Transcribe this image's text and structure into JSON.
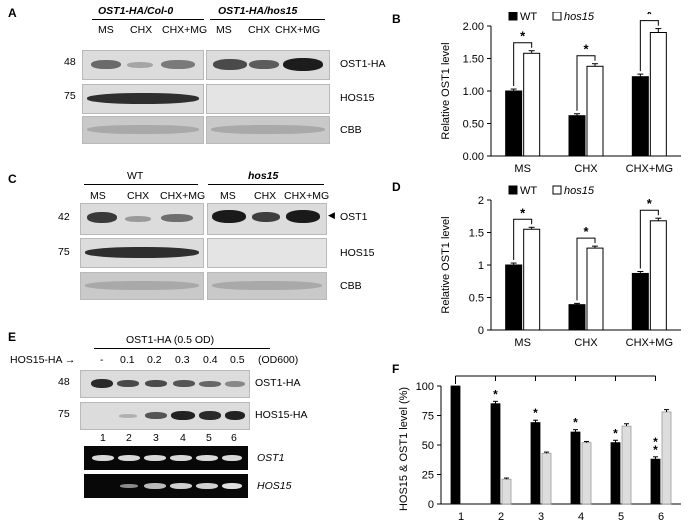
{
  "panels": {
    "A": {
      "letter": "A",
      "group1": "OST1-HA/Col-0",
      "group2": "OST1-HA/hos15",
      "lanes": [
        "MS",
        "CHX",
        "CHX+MG",
        "MS",
        "CHX",
        "CHX+MG"
      ],
      "marker_48": "48",
      "marker_75": "75",
      "row1": "OST1-HA",
      "row2": "HOS15",
      "row3": "CBB"
    },
    "C": {
      "letter": "C",
      "group1": "WT",
      "group2": "hos15",
      "lanes": [
        "MS",
        "CHX",
        "CHX+MG",
        "MS",
        "CHX",
        "CHX+MG"
      ],
      "marker_42": "42",
      "marker_75": "75",
      "row1": "OST1",
      "row2": "HOS15",
      "row3": "CBB"
    },
    "E": {
      "letter": "E",
      "title": "OST1-HA (0.5 OD)",
      "hos15_label": "HOS15-HA",
      "doses": [
        "-",
        "0.1",
        "0.2",
        "0.3",
        "0.4",
        "0.5"
      ],
      "od_label": "(OD600)",
      "marker_48": "48",
      "marker_75": "75",
      "row1": "OST1-HA",
      "row2": "HOS15-HA",
      "row3": "OST1",
      "row4": "HOS15",
      "lane_numbers": [
        "1",
        "2",
        "3",
        "4",
        "5",
        "6"
      ]
    }
  },
  "chart_data": [
    {
      "id": "B",
      "type": "bar",
      "letter": "B",
      "categories": [
        "MS",
        "CHX",
        "CHX+MG"
      ],
      "series": [
        {
          "name": "WT",
          "values": [
            1.0,
            0.62,
            1.22
          ],
          "color": "#000000"
        },
        {
          "name": "hos15",
          "values": [
            1.58,
            1.38,
            1.9
          ],
          "color": "#ffffff"
        }
      ],
      "errors": [
        [
          0.03,
          0.03,
          0.04
        ],
        [
          0.04,
          0.04,
          0.06
        ]
      ],
      "ylabel": "Relative OST1 level",
      "ylim": [
        0,
        2.0
      ],
      "yticks": [
        "0.00",
        "0.50",
        "1.00",
        "1.50",
        "2.00"
      ],
      "significance": [
        "*",
        "*",
        "*"
      ],
      "legend": "top"
    },
    {
      "id": "D",
      "type": "bar",
      "letter": "D",
      "categories": [
        "MS",
        "CHX",
        "CHX+MG"
      ],
      "series": [
        {
          "name": "WT",
          "values": [
            1.0,
            0.39,
            0.87
          ],
          "color": "#000000"
        },
        {
          "name": "hos15",
          "values": [
            1.55,
            1.26,
            1.68
          ],
          "color": "#ffffff"
        }
      ],
      "errors": [
        [
          0.03,
          0.02,
          0.03
        ],
        [
          0.03,
          0.03,
          0.04
        ]
      ],
      "ylabel": "Relative OST1 level",
      "ylim": [
        0,
        2.0
      ],
      "yticks": [
        "0",
        "0.5",
        "1",
        "1.5",
        "2"
      ],
      "significance": [
        "*",
        "*",
        "*"
      ],
      "legend": "top"
    },
    {
      "id": "F",
      "type": "bar",
      "letter": "F",
      "categories": [
        "1",
        "2",
        "3",
        "4",
        "5",
        "6"
      ],
      "series": [
        {
          "name": "OST1",
          "values": [
            100,
            85,
            69,
            61,
            52,
            38
          ],
          "color": "#000000"
        },
        {
          "name": "HOS15",
          "values": [
            0,
            21,
            43,
            52,
            66,
            78
          ],
          "color": "#dddddd"
        }
      ],
      "errors": [
        [
          0,
          2,
          2,
          2,
          2,
          2
        ],
        [
          0,
          1,
          1,
          1,
          2,
          2
        ]
      ],
      "ylabel": "HOS15 & OST1 level (%)",
      "ylim": [
        0,
        100
      ],
      "yticks": [
        "0",
        "25",
        "50",
        "75",
        "100"
      ],
      "significance": [
        "",
        "*",
        "*",
        "*",
        "*",
        "**"
      ]
    }
  ]
}
